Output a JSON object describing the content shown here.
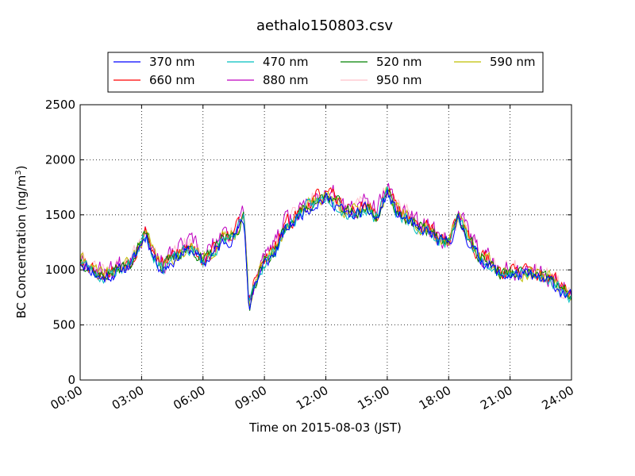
{
  "chart_data": {
    "type": "line",
    "title": "aethalo150803.csv",
    "xlabel": "Time on 2015-08-03 (JST)",
    "ylabel": "BC Concentration (ng/m",
    "ylabel_sup": "3",
    "ylabel_close": ")",
    "xlim": [
      0,
      24
    ],
    "ylim": [
      0,
      2500
    ],
    "x_ticks": [
      0,
      3,
      6,
      9,
      12,
      15,
      18,
      21,
      24
    ],
    "x_tick_labels": [
      "00:00",
      "03:00",
      "06:00",
      "09:00",
      "12:00",
      "15:00",
      "18:00",
      "21:00",
      "24:00"
    ],
    "y_ticks": [
      0,
      500,
      1000,
      1500,
      2000,
      2500
    ],
    "y_tick_labels": [
      "0",
      "500",
      "1000",
      "1500",
      "2000",
      "2500"
    ],
    "grid": true,
    "legend_position": "top",
    "base_profile": {
      "x": [
        0,
        0.5,
        1,
        1.5,
        2,
        2.5,
        3,
        3.25,
        3.5,
        4,
        4.5,
        5,
        5.5,
        6,
        6.5,
        7,
        7.5,
        8,
        8.25,
        8.5,
        9,
        9.5,
        10,
        10.5,
        11,
        11.5,
        12,
        12.5,
        13,
        13.5,
        14,
        14.5,
        15,
        15.5,
        16,
        16.5,
        17,
        17.5,
        18,
        18.5,
        19,
        19.5,
        20,
        20.5,
        21,
        21.5,
        22,
        22.5,
        23,
        23.5,
        24
      ],
      "y": [
        1080,
        1000,
        920,
        950,
        1000,
        1050,
        1250,
        1320,
        1150,
        1000,
        1080,
        1150,
        1180,
        1050,
        1150,
        1250,
        1300,
        1450,
        650,
        850,
        1050,
        1150,
        1350,
        1450,
        1550,
        1600,
        1650,
        1600,
        1500,
        1500,
        1550,
        1450,
        1700,
        1500,
        1450,
        1350,
        1350,
        1250,
        1250,
        1450,
        1250,
        1100,
        1050,
        950,
        950,
        950,
        950,
        900,
        900,
        800,
        750
      ]
    },
    "series": [
      {
        "name": "370 nm",
        "color": "#0000ff",
        "offset": 0,
        "noise": 90,
        "seed": 11
      },
      {
        "name": "470 nm",
        "color": "#00bfbf",
        "offset": 10,
        "noise": 90,
        "seed": 23
      },
      {
        "name": "520 nm",
        "color": "#008000",
        "offset": 20,
        "noise": 95,
        "seed": 37
      },
      {
        "name": "590 nm",
        "color": "#bfbf00",
        "offset": 30,
        "noise": 100,
        "seed": 41
      },
      {
        "name": "660 nm",
        "color": "#ff0000",
        "offset": 40,
        "noise": 110,
        "seed": 53
      },
      {
        "name": "880 nm",
        "color": "#bf00bf",
        "offset": 60,
        "noise": 150,
        "seed": 67
      },
      {
        "name": "950 nm",
        "color": "#ffc0cb",
        "offset": 50,
        "noise": 140,
        "seed": 79
      }
    ]
  }
}
